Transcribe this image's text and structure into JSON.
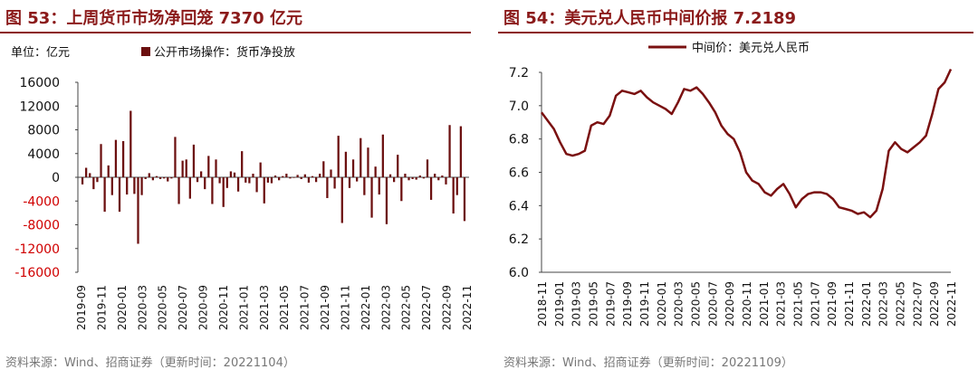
{
  "colors": {
    "accent": "#8b1a1a",
    "bar": "#6b0f0f",
    "line": "#7a1010",
    "neg_tick": "#d00000",
    "text": "#111111",
    "grid": "#bfbfbf",
    "source": "#777777"
  },
  "panels": [
    {
      "title": "图 53：上周货币市场净回笼 7370 亿元",
      "source": "资料来源：Wind、招商证券（更新时间：20221104）"
    },
    {
      "title": "图 54：美元兑人民币中间价报 7.2189",
      "source": "资料来源：Wind、招商证券（更新时间：20221109）"
    }
  ],
  "chart_data": [
    {
      "type": "bar",
      "unit_label": "单位：亿元",
      "legend": "公开市场操作：货币净投放",
      "ylim": [
        -16000,
        16000
      ],
      "yticks": [
        16000,
        12000,
        8000,
        4000,
        0,
        -4000,
        -8000,
        -12000,
        -16000
      ],
      "xticks": [
        "2019-09",
        "2019-11",
        "2020-01",
        "2020-03",
        "2020-05",
        "2020-07",
        "2020-09",
        "2020-11",
        "2021-01",
        "2021-03",
        "2021-05",
        "2021-07",
        "2021-09",
        "2021-11",
        "2022-01",
        "2022-03",
        "2022-05",
        "2022-07",
        "2022-09",
        "2022-11"
      ],
      "x_start": "2019-09",
      "x_end": "2022-11",
      "values": [
        -1200,
        1600,
        700,
        -2000,
        -800,
        5600,
        -5800,
        2000,
        -3000,
        6300,
        -5800,
        6100,
        -2900,
        11200,
        -2800,
        -11200,
        -3000,
        -300,
        700,
        -500,
        200,
        -300,
        -200,
        -700,
        -200,
        6800,
        -4500,
        2800,
        3000,
        -3600,
        5500,
        -800,
        1000,
        -2000,
        3600,
        -4500,
        3000,
        -1000,
        -5000,
        -1800,
        1000,
        800,
        -2400,
        4400,
        -900,
        -1000,
        600,
        -2500,
        2500,
        -4400,
        -900,
        -1000,
        300,
        -500,
        200,
        600,
        -200,
        -100,
        400,
        -300,
        500,
        -900,
        200,
        -800,
        600,
        2700,
        -3500,
        1300,
        -1900,
        7000,
        -7700,
        4300,
        -1800,
        3000,
        -700,
        6600,
        -3000,
        5000,
        -6800,
        1800,
        -2900,
        7200,
        -7900,
        500,
        -800,
        3800,
        -4000,
        600,
        -500,
        -300,
        -400,
        300,
        -200,
        3000,
        -3800,
        600,
        -500,
        300,
        -1200,
        8800,
        -6100,
        -3000,
        8600,
        -7370
      ]
    },
    {
      "type": "line",
      "legend": "中间价：美元兑人民币",
      "ylim": [
        6.0,
        7.2
      ],
      "yticks": [
        7.2,
        7.0,
        6.8,
        6.6,
        6.4,
        6.2,
        6.0
      ],
      "xticks": [
        "2018-11",
        "2019-01",
        "2019-03",
        "2019-05",
        "2019-07",
        "2019-09",
        "2019-11",
        "2020-01",
        "2020-03",
        "2020-05",
        "2020-07",
        "2020-09",
        "2020-11",
        "2021-01",
        "2021-03",
        "2021-05",
        "2021-07",
        "2021-09",
        "2021-11",
        "2022-01",
        "2022-03",
        "2022-05",
        "2022-07",
        "2022-09",
        "2022-11"
      ],
      "x_start": "2018-11",
      "x_end": "2022-11",
      "values": [
        6.96,
        6.91,
        6.86,
        6.78,
        6.71,
        6.7,
        6.71,
        6.73,
        6.88,
        6.9,
        6.89,
        6.94,
        7.06,
        7.09,
        7.08,
        7.07,
        7.09,
        7.05,
        7.02,
        7.0,
        6.98,
        6.95,
        7.02,
        7.1,
        7.09,
        7.11,
        7.07,
        7.02,
        6.96,
        6.88,
        6.83,
        6.8,
        6.72,
        6.6,
        6.55,
        6.53,
        6.48,
        6.46,
        6.5,
        6.53,
        6.47,
        6.39,
        6.44,
        6.47,
        6.48,
        6.48,
        6.47,
        6.44,
        6.39,
        6.38,
        6.37,
        6.35,
        6.36,
        6.33,
        6.37,
        6.5,
        6.73,
        6.78,
        6.74,
        6.72,
        6.75,
        6.78,
        6.82,
        6.95,
        7.1,
        7.14,
        7.2189
      ]
    }
  ]
}
